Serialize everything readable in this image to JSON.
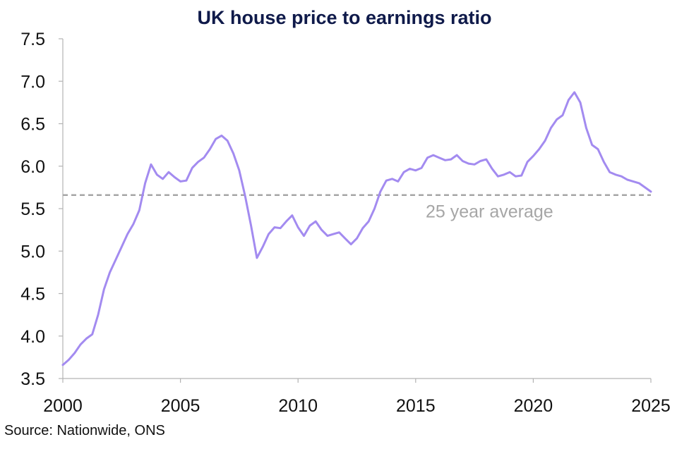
{
  "chart_data": {
    "type": "line",
    "title": "UK house price to earnings ratio",
    "xlabel": "",
    "ylabel": "",
    "xlim": [
      2000,
      2025
    ],
    "ylim": [
      3.5,
      7.5
    ],
    "x_ticks": [
      "2000",
      "2005",
      "2010",
      "2015",
      "2020",
      "2025"
    ],
    "y_ticks": [
      "3.5",
      "4.0",
      "4.5",
      "5.0",
      "5.5",
      "6.0",
      "6.5",
      "7.0",
      "7.5"
    ],
    "grid": false,
    "series": [
      {
        "color": "#a38bf0",
        "x": [
          2000.0,
          2000.25,
          2000.5,
          2000.75,
          2001.0,
          2001.25,
          2001.5,
          2001.75,
          2002.0,
          2002.25,
          2002.5,
          2002.75,
          2003.0,
          2003.25,
          2003.5,
          2003.75,
          2004.0,
          2004.25,
          2004.5,
          2004.75,
          2005.0,
          2005.25,
          2005.5,
          2005.75,
          2006.0,
          2006.25,
          2006.5,
          2006.75,
          2007.0,
          2007.25,
          2007.5,
          2007.75,
          2008.0,
          2008.25,
          2008.5,
          2008.75,
          2009.0,
          2009.25,
          2009.5,
          2009.75,
          2010.0,
          2010.25,
          2010.5,
          2010.75,
          2011.0,
          2011.25,
          2011.5,
          2011.75,
          2012.0,
          2012.25,
          2012.5,
          2012.75,
          2013.0,
          2013.25,
          2013.5,
          2013.75,
          2014.0,
          2014.25,
          2014.5,
          2014.75,
          2015.0,
          2015.25,
          2015.5,
          2015.75,
          2016.0,
          2016.25,
          2016.5,
          2016.75,
          2017.0,
          2017.25,
          2017.5,
          2017.75,
          2018.0,
          2018.25,
          2018.5,
          2018.75,
          2019.0,
          2019.25,
          2019.5,
          2019.75,
          2020.0,
          2020.25,
          2020.5,
          2020.75,
          2021.0,
          2021.25,
          2021.5,
          2021.75,
          2022.0,
          2022.25,
          2022.5,
          2022.75,
          2023.0,
          2023.25,
          2023.5,
          2023.75,
          2024.0,
          2024.25,
          2024.5,
          2024.75,
          2025.0
        ],
        "values": [
          3.66,
          3.72,
          3.8,
          3.9,
          3.97,
          4.02,
          4.25,
          4.55,
          4.75,
          4.9,
          5.05,
          5.2,
          5.32,
          5.48,
          5.8,
          6.02,
          5.9,
          5.85,
          5.93,
          5.87,
          5.82,
          5.83,
          5.98,
          6.05,
          6.1,
          6.2,
          6.32,
          6.36,
          6.3,
          6.15,
          5.95,
          5.65,
          5.3,
          4.92,
          5.05,
          5.2,
          5.28,
          5.27,
          5.35,
          5.42,
          5.28,
          5.18,
          5.3,
          5.35,
          5.25,
          5.18,
          5.2,
          5.22,
          5.15,
          5.08,
          5.15,
          5.27,
          5.35,
          5.5,
          5.7,
          5.83,
          5.85,
          5.82,
          5.93,
          5.97,
          5.95,
          5.98,
          6.1,
          6.13,
          6.1,
          6.07,
          6.08,
          6.13,
          6.06,
          6.03,
          6.02,
          6.06,
          6.08,
          5.97,
          5.88,
          5.9,
          5.93,
          5.88,
          5.89,
          6.05,
          6.12,
          6.2,
          6.3,
          6.45,
          6.55,
          6.6,
          6.78,
          6.87,
          6.75,
          6.45,
          6.25,
          6.2,
          6.05,
          5.93,
          5.9,
          5.88,
          5.84,
          5.82,
          5.8,
          5.75,
          5.7
        ]
      }
    ],
    "reference_line": {
      "value": 5.66,
      "label": "25 year average",
      "color": "#a6a6a6",
      "style": "dashed"
    }
  },
  "source": "Source: Nationwide, ONS"
}
